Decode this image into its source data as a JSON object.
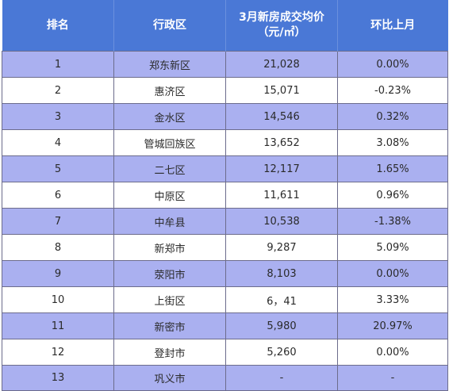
{
  "table": {
    "headers": [
      "排名",
      "行政区",
      "3月新房成交均价\n（元/㎡）",
      "环比上月"
    ],
    "rows": [
      [
        "1",
        "郑东新区",
        "21,028",
        "0.00%"
      ],
      [
        "2",
        "惠济区",
        "15,071",
        "-0.23%"
      ],
      [
        "3",
        "金水区",
        "14,546",
        "0.32%"
      ],
      [
        "4",
        "管城回族区",
        "13,652",
        "3.08%"
      ],
      [
        "5",
        "二七区",
        "12,117",
        "1.65%"
      ],
      [
        "6",
        "中原区",
        "11,611",
        "0.96%"
      ],
      [
        "7",
        "中牟县",
        "10,538",
        "-1.38%"
      ],
      [
        "8",
        "新郑市",
        "9,287",
        "5.09%"
      ],
      [
        "9",
        "荥阳市",
        "8,103",
        "0.00%"
      ],
      [
        "10",
        "上街区",
        "6，41",
        "3.33%"
      ],
      [
        "11",
        "新密市",
        "5,980",
        "20.97%"
      ],
      [
        "12",
        "登封市",
        "5,260",
        "0.00%"
      ],
      [
        "13",
        "巩义市",
        "-",
        "-"
      ]
    ]
  },
  "colors": {
    "header_bg": "#4a78d6",
    "header_text": "#ffffff",
    "band_row_bg": "#aab0f0",
    "plain_row_bg": "#ffffff",
    "grid_line": "#6c6c8c"
  }
}
